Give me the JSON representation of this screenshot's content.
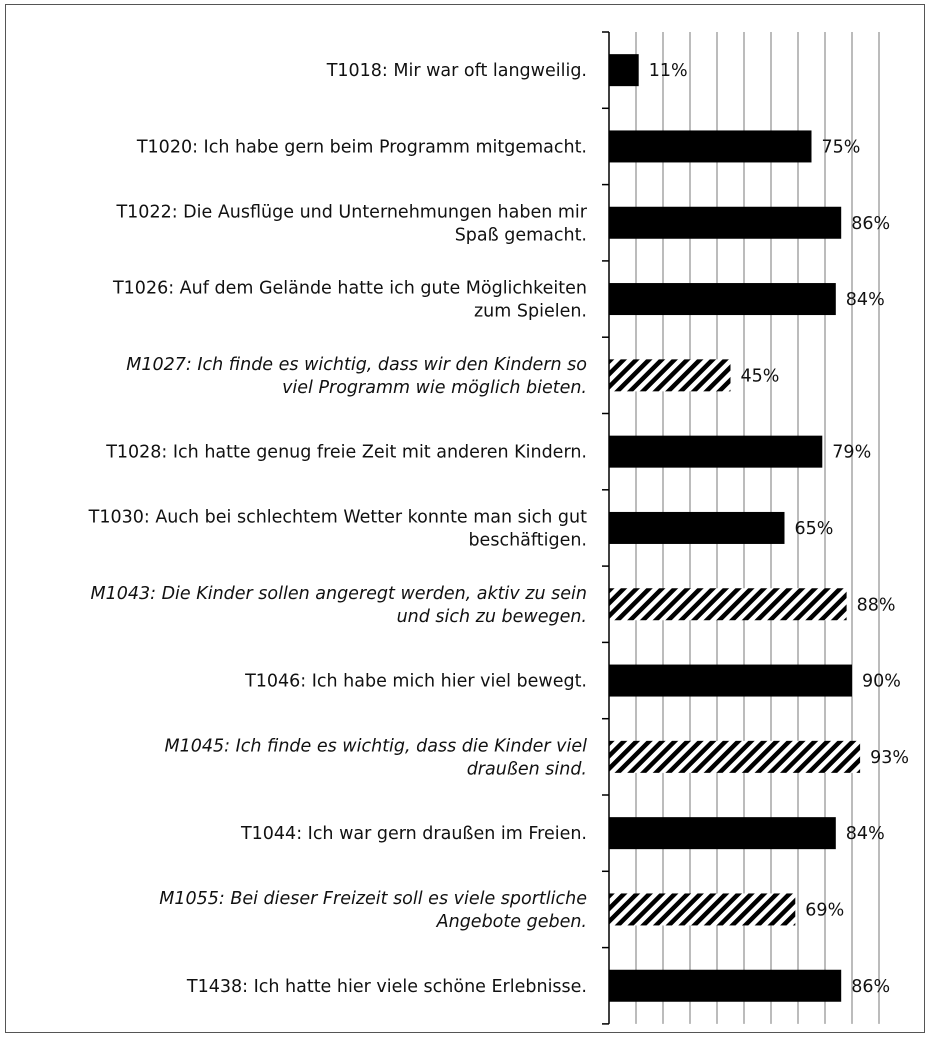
{
  "chart_data": {
    "type": "bar",
    "orientation": "horizontal",
    "title": "",
    "xlabel": "",
    "ylabel": "",
    "xlim": [
      0,
      100
    ],
    "grid": true,
    "legend": "none",
    "value_suffix": "%",
    "colors": {
      "solid": "#000000",
      "hatched": "#000000",
      "grid": "#a6a6a6",
      "axis": "#000000"
    },
    "categories": [
      {
        "lines": [
          "T1018: Mir war oft langweilig."
        ],
        "value": 11,
        "style": "solid",
        "italic": false
      },
      {
        "lines": [
          "T1020: Ich habe gern beim Programm mitgemacht."
        ],
        "value": 75,
        "style": "solid",
        "italic": false
      },
      {
        "lines": [
          "T1022: Die Ausflüge und Unternehmungen haben mir",
          "Spaß gemacht."
        ],
        "value": 86,
        "style": "solid",
        "italic": false
      },
      {
        "lines": [
          "T1026: Auf dem Gelände hatte ich gute Möglichkeiten",
          "zum Spielen."
        ],
        "value": 84,
        "style": "solid",
        "italic": false
      },
      {
        "lines": [
          "M1027: Ich finde es wichtig, dass wir den Kindern so",
          "viel Programm wie möglich bieten."
        ],
        "value": 45,
        "style": "hatched",
        "italic": true
      },
      {
        "lines": [
          "T1028: Ich hatte genug freie Zeit mit anderen Kindern."
        ],
        "value": 79,
        "style": "solid",
        "italic": false
      },
      {
        "lines": [
          "T1030: Auch bei schlechtem Wetter konnte man sich gut",
          "beschäftigen."
        ],
        "value": 65,
        "style": "solid",
        "italic": false
      },
      {
        "lines": [
          "M1043: Die Kinder sollen angeregt werden, aktiv zu sein",
          "und sich zu bewegen."
        ],
        "value": 88,
        "style": "hatched",
        "italic": true
      },
      {
        "lines": [
          "T1046: Ich habe mich hier viel bewegt."
        ],
        "value": 90,
        "style": "solid",
        "italic": false
      },
      {
        "lines": [
          "M1045: Ich finde es wichtig, dass die Kinder viel",
          "draußen sind."
        ],
        "value": 93,
        "style": "hatched",
        "italic": true
      },
      {
        "lines": [
          "T1044: Ich war gern draußen im Freien."
        ],
        "value": 84,
        "style": "solid",
        "italic": false
      },
      {
        "lines": [
          "M1055: Bei dieser Freizeit soll es viele sportliche",
          "Angebote geben."
        ],
        "value": 69,
        "style": "hatched",
        "italic": true
      },
      {
        "lines": [
          "T1438: Ich hatte hier viele schöne Erlebnisse."
        ],
        "value": 86,
        "style": "solid",
        "italic": false
      }
    ]
  }
}
